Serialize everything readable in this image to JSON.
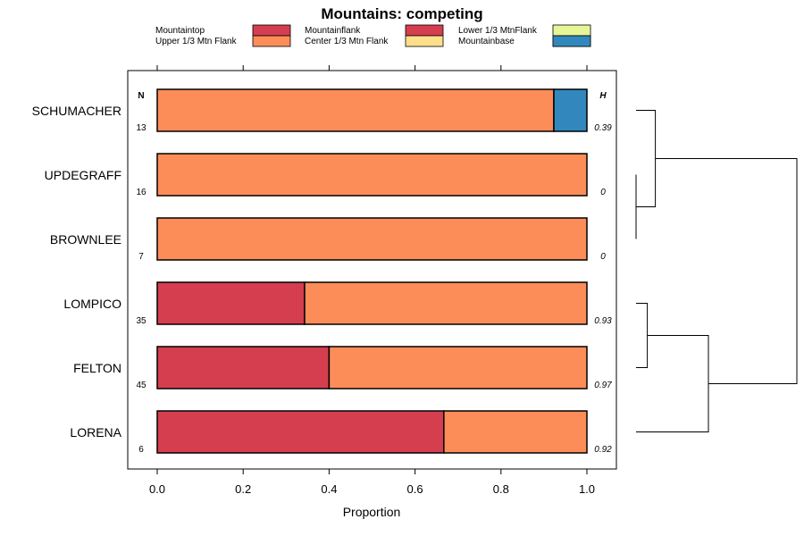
{
  "chart_data": {
    "type": "bar",
    "orientation": "horizontal",
    "stacked": true,
    "title": "Mountains: competing",
    "xlabel": "Proportion",
    "ylabel": "",
    "xlim": [
      0,
      1
    ],
    "xticks": [
      0,
      0.2,
      0.4,
      0.6,
      0.8,
      1
    ],
    "xtick_labels": [
      "0.0",
      "0.2",
      "0.4",
      "0.6",
      "0.8",
      "1.0"
    ],
    "n_header": "N",
    "h_header": "H",
    "legend": [
      {
        "name": "Mountaintop",
        "color": "#d53e4f"
      },
      {
        "name": "Upper 1/3 Mtn Flank",
        "color": "#fc8d59"
      },
      {
        "name": "Mountainflank",
        "color": "#d53e4f"
      },
      {
        "name": "Center 1/3 Mtn Flank",
        "color": "#fee08b"
      },
      {
        "name": "Lower 1/3 MtnFlank",
        "color": "#e6f598"
      },
      {
        "name": "Mountainbase",
        "color": "#99d594"
      },
      {
        "name": "",
        "color": "#3288bd"
      }
    ],
    "categories": [
      "SCHUMACHER",
      "UPDEGRAFF",
      "BROWNLEE",
      "LOMPICO",
      "FELTON",
      "LORENA"
    ],
    "n_values": [
      "13",
      "16",
      "7",
      "35",
      "45",
      "6"
    ],
    "h_values": [
      "0.39",
      "0",
      "0",
      "0.93",
      "0.97",
      "0.92"
    ],
    "series": [
      {
        "name": "Mountaintop",
        "color": "#d53e4f",
        "values": [
          0,
          0,
          0,
          0.343,
          0.4,
          0.667
        ]
      },
      {
        "name": "Upper 1/3 Mtn Flank",
        "color": "#fc8d59",
        "values": [
          0.923,
          1,
          1,
          0.657,
          0.6,
          0.333
        ]
      },
      {
        "name": "Mountainbase",
        "color": "#3288bd",
        "values": [
          0.077,
          0,
          0,
          0,
          0,
          0
        ]
      }
    ],
    "dendrogram": {
      "type": "hierarchical-clustering",
      "merges": [
        {
          "left": "UPDEGRAFF",
          "right": "BROWNLEE",
          "height": 0.0
        },
        {
          "left": "LOMPICO",
          "right": "FELTON",
          "height": 0.07
        },
        {
          "left": "SCHUMACHER",
          "right": "UPDEGRAFF+BROWNLEE",
          "height": 0.12
        },
        {
          "left": "LOMPICO+FELTON",
          "right": "LORENA",
          "height": 0.45
        },
        {
          "left": "SCHUMACHER+UPDEGRAFF+BROWNLEE",
          "right": "LOMPICO+FELTON+LORENA",
          "height": 1.0
        }
      ]
    }
  }
}
